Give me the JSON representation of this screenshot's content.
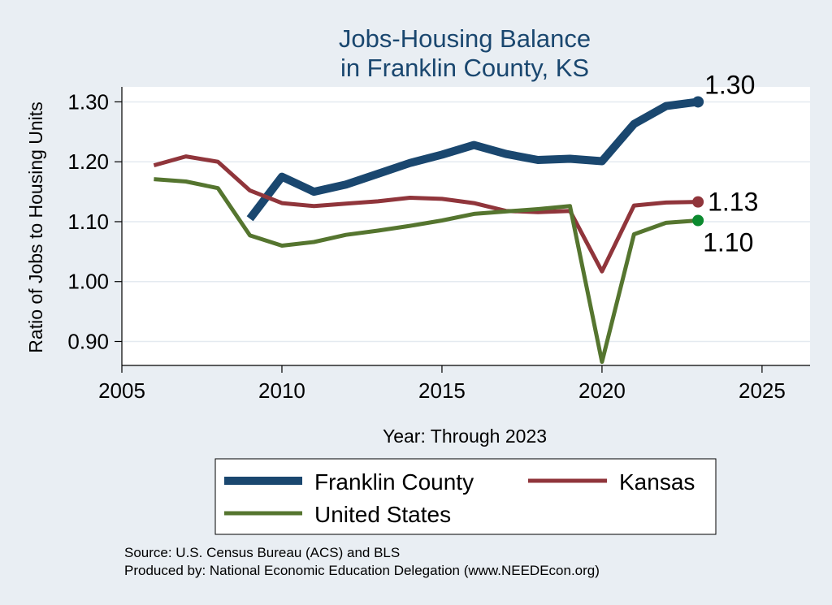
{
  "chart_data": {
    "type": "line",
    "title": "Jobs-Housing Balance",
    "subtitle": "in Franklin County, KS",
    "xlabel": "Year: Through 2023",
    "ylabel": "Ratio of Jobs to Housing Units",
    "xlim": [
      2005,
      2026.5
    ],
    "ylim": [
      0.86,
      1.325
    ],
    "x_ticks": [
      2005,
      2010,
      2015,
      2020,
      2025
    ],
    "x_tick_labels": [
      "2005",
      "2010",
      "2015",
      "2020",
      "2025"
    ],
    "y_ticks": [
      0.9,
      1.0,
      1.1,
      1.2,
      1.3
    ],
    "y_tick_labels": [
      "0.90",
      "1.00",
      "1.10",
      "1.20",
      "1.30"
    ],
    "grid": true,
    "legend_position": "bottom",
    "series": [
      {
        "name": "Franklin County",
        "color": "#1a476f",
        "x": [
          2009,
          2010,
          2011,
          2012,
          2013,
          2014,
          2015,
          2016,
          2017,
          2018,
          2019,
          2020,
          2021,
          2022,
          2023
        ],
        "values": [
          1.105,
          1.175,
          1.15,
          1.162,
          1.18,
          1.198,
          1.212,
          1.228,
          1.213,
          1.203,
          1.205,
          1.201,
          1.263,
          1.293,
          1.3
        ],
        "end_label": "1.30"
      },
      {
        "name": "Kansas",
        "color": "#90353b",
        "x": [
          2006,
          2007,
          2008,
          2009,
          2010,
          2011,
          2012,
          2013,
          2014,
          2015,
          2016,
          2017,
          2018,
          2019,
          2020,
          2021,
          2022,
          2023
        ],
        "values": [
          1.194,
          1.209,
          1.2,
          1.152,
          1.131,
          1.126,
          1.13,
          1.134,
          1.14,
          1.138,
          1.131,
          1.118,
          1.116,
          1.118,
          1.017,
          1.127,
          1.132,
          1.133
        ],
        "end_label": "1.13"
      },
      {
        "name": "United States",
        "color": "#55752f",
        "x": [
          2006,
          2007,
          2008,
          2009,
          2010,
          2011,
          2012,
          2013,
          2014,
          2015,
          2016,
          2017,
          2018,
          2019,
          2020,
          2021,
          2022,
          2023
        ],
        "values": [
          1.171,
          1.167,
          1.156,
          1.077,
          1.06,
          1.066,
          1.078,
          1.085,
          1.093,
          1.102,
          1.113,
          1.117,
          1.121,
          1.126,
          0.866,
          1.079,
          1.098,
          1.102
        ],
        "end_label": "1.10",
        "end_marker_color": "#0c8a2f"
      }
    ]
  },
  "source": {
    "line1": "Source: U.S. Census Bureau (ACS) and BLS",
    "line2": "Produced by: National Economic Education Delegation (www.NEEDEcon.org)"
  }
}
